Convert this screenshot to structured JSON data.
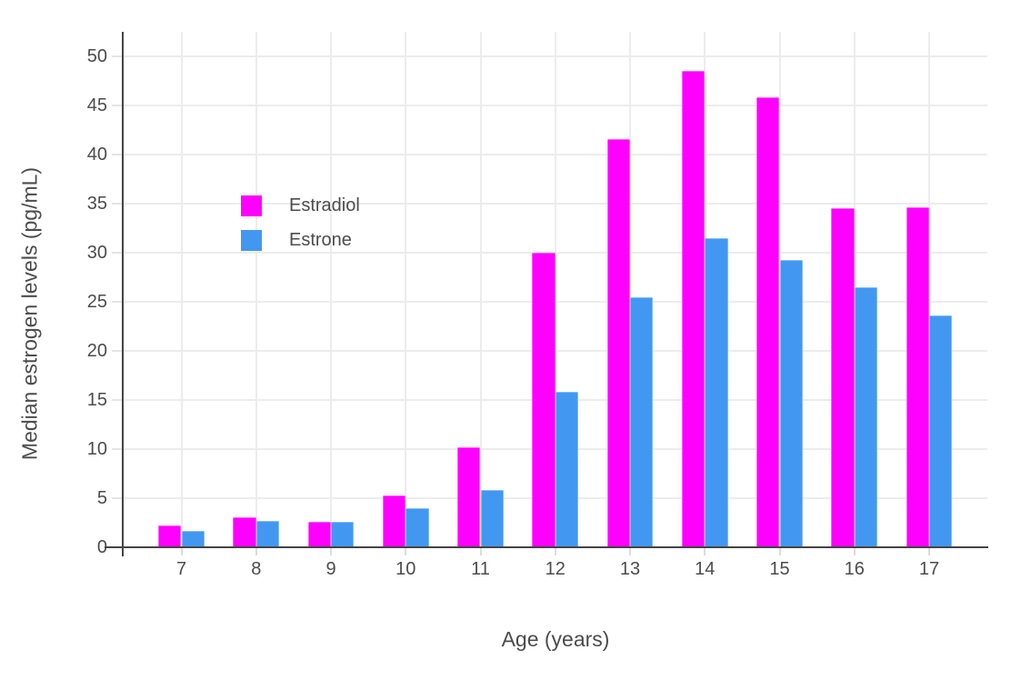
{
  "chart_data": {
    "type": "bar",
    "title": "",
    "xlabel": "Age (years)",
    "ylabel": "Median estrogen levels (pg/mL)",
    "categories": [
      "7",
      "8",
      "9",
      "10",
      "11",
      "12",
      "13",
      "14",
      "15",
      "16",
      "17"
    ],
    "series": [
      {
        "name": "Estradiol",
        "color": "#FF00FF",
        "values": [
          2.2,
          3.1,
          2.6,
          5.3,
          10.2,
          30.0,
          41.6,
          48.5,
          45.8,
          34.5,
          34.6
        ]
      },
      {
        "name": "Estrone",
        "color": "#4298F1",
        "values": [
          1.7,
          2.7,
          2.6,
          4.0,
          5.8,
          15.8,
          25.5,
          31.5,
          29.3,
          26.5,
          23.6
        ]
      }
    ],
    "yticks": [
      0,
      5,
      10,
      15,
      20,
      25,
      30,
      35,
      40,
      45,
      50
    ],
    "ylim": [
      0,
      52.5
    ],
    "grid": true,
    "legend_position": "inside-top-left",
    "legend_entries": [
      "Estradiol",
      "Estrone"
    ]
  },
  "styles": {
    "background": "#FFFFFF",
    "axis_color": "#444444",
    "grid_color": "#ECECEC",
    "tick_color": "#DBDBDB",
    "text_color": "#4C4C4C",
    "estradiol_color": "#FF00FF",
    "estrone_color": "#4298F1"
  }
}
